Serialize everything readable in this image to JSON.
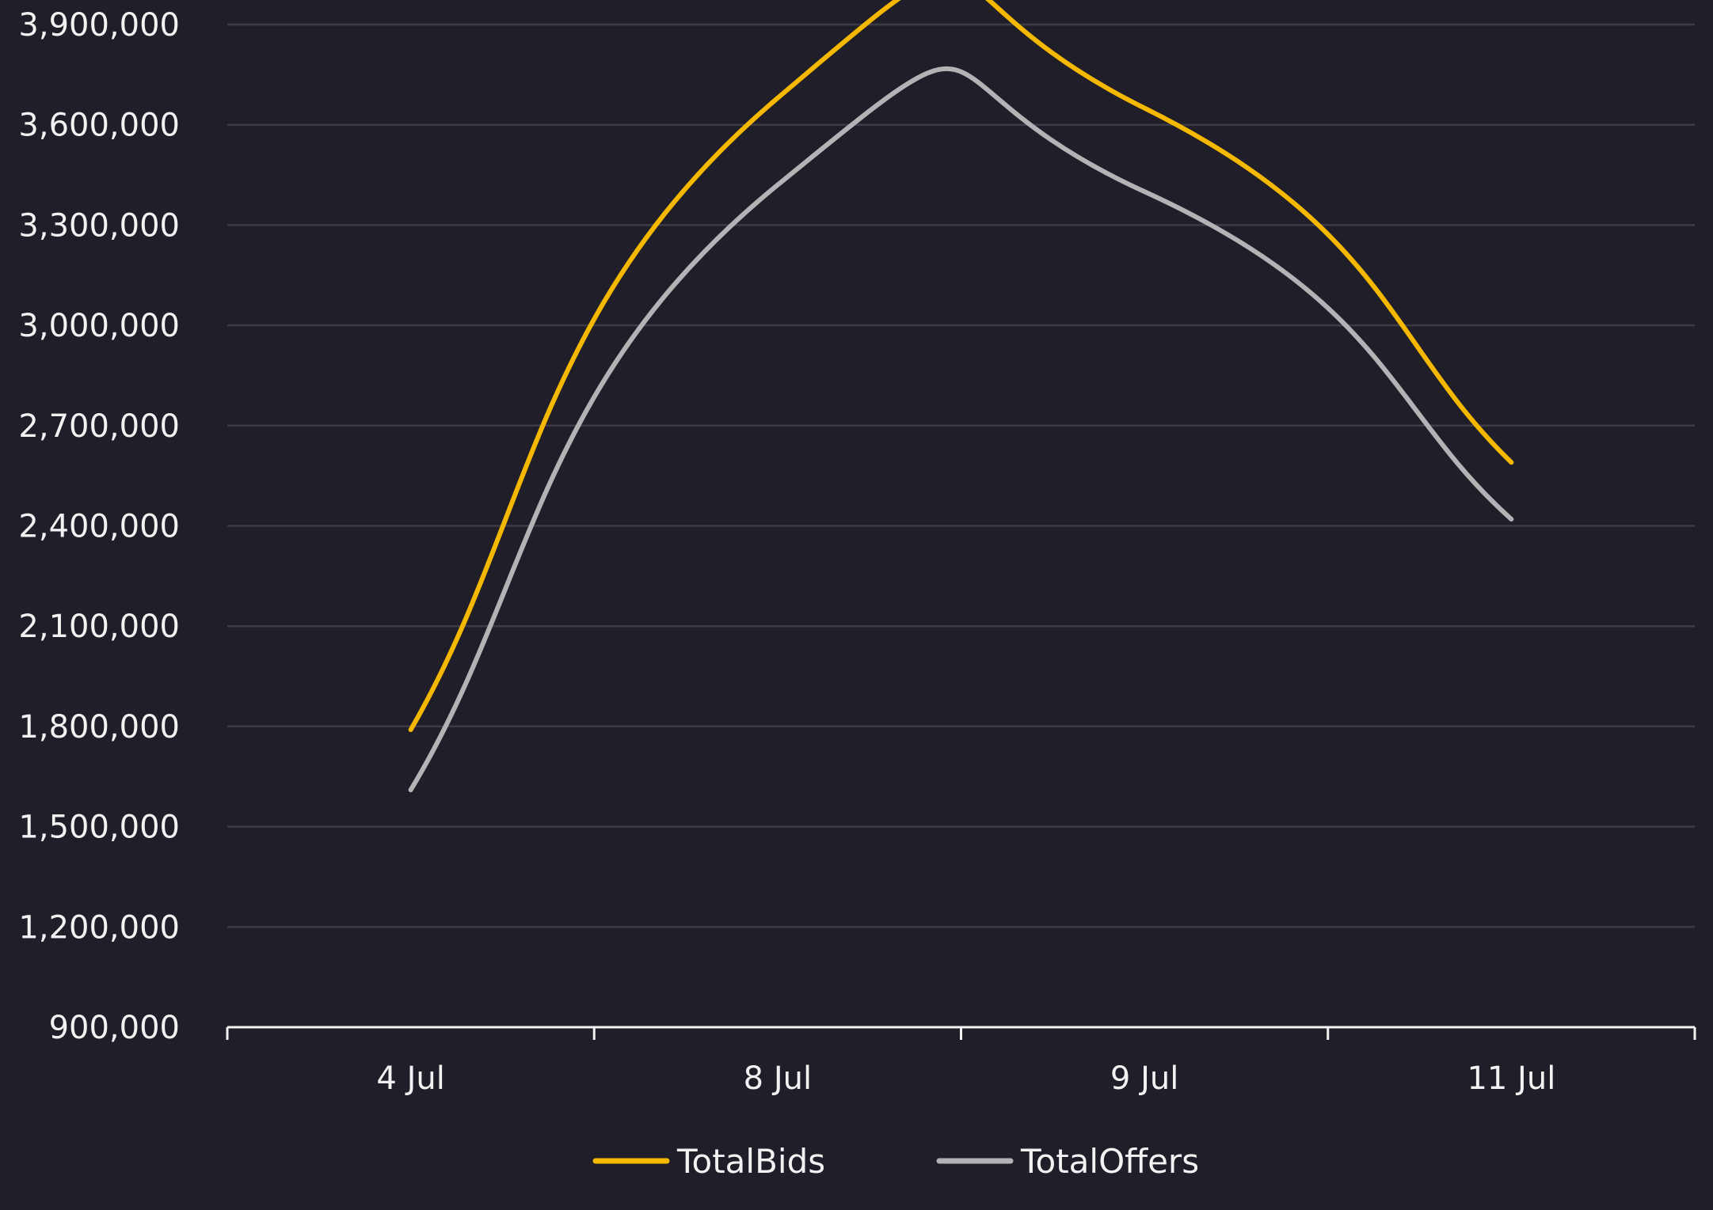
{
  "chart_data": {
    "type": "line",
    "title": "",
    "xlabel": "",
    "ylabel": "",
    "categories": [
      "4 Jul",
      "8 Jul",
      "9 Jul",
      "11 Jul"
    ],
    "ylim": [
      900000,
      3900000
    ],
    "yticks": [
      900000,
      1200000,
      1500000,
      1800000,
      2100000,
      2400000,
      2700000,
      3000000,
      3300000,
      3600000,
      3900000
    ],
    "ytick_labels": [
      "900,000",
      "1,200,000",
      "1,500,000",
      "1,800,000",
      "2,100,000",
      "2,400,000",
      "2,700,000",
      "3,000,000",
      "3,300,000",
      "3,600,000",
      "3,900,000"
    ],
    "grid": true,
    "legend_position": "bottom",
    "smooth": true,
    "series": [
      {
        "name": "TotalBids",
        "color": "#f5b800",
        "values": [
          1790000,
          3680000,
          3650000,
          2590000
        ]
      },
      {
        "name": "TotalOffers",
        "color": "#b3b2b5",
        "values": [
          1610000,
          3420000,
          3400000,
          2420000
        ]
      }
    ]
  },
  "colors": {
    "background": "#1f1e29",
    "gridline": "#3d3c46",
    "axis": "#f2f2f2",
    "text": "#f2f2f2"
  }
}
